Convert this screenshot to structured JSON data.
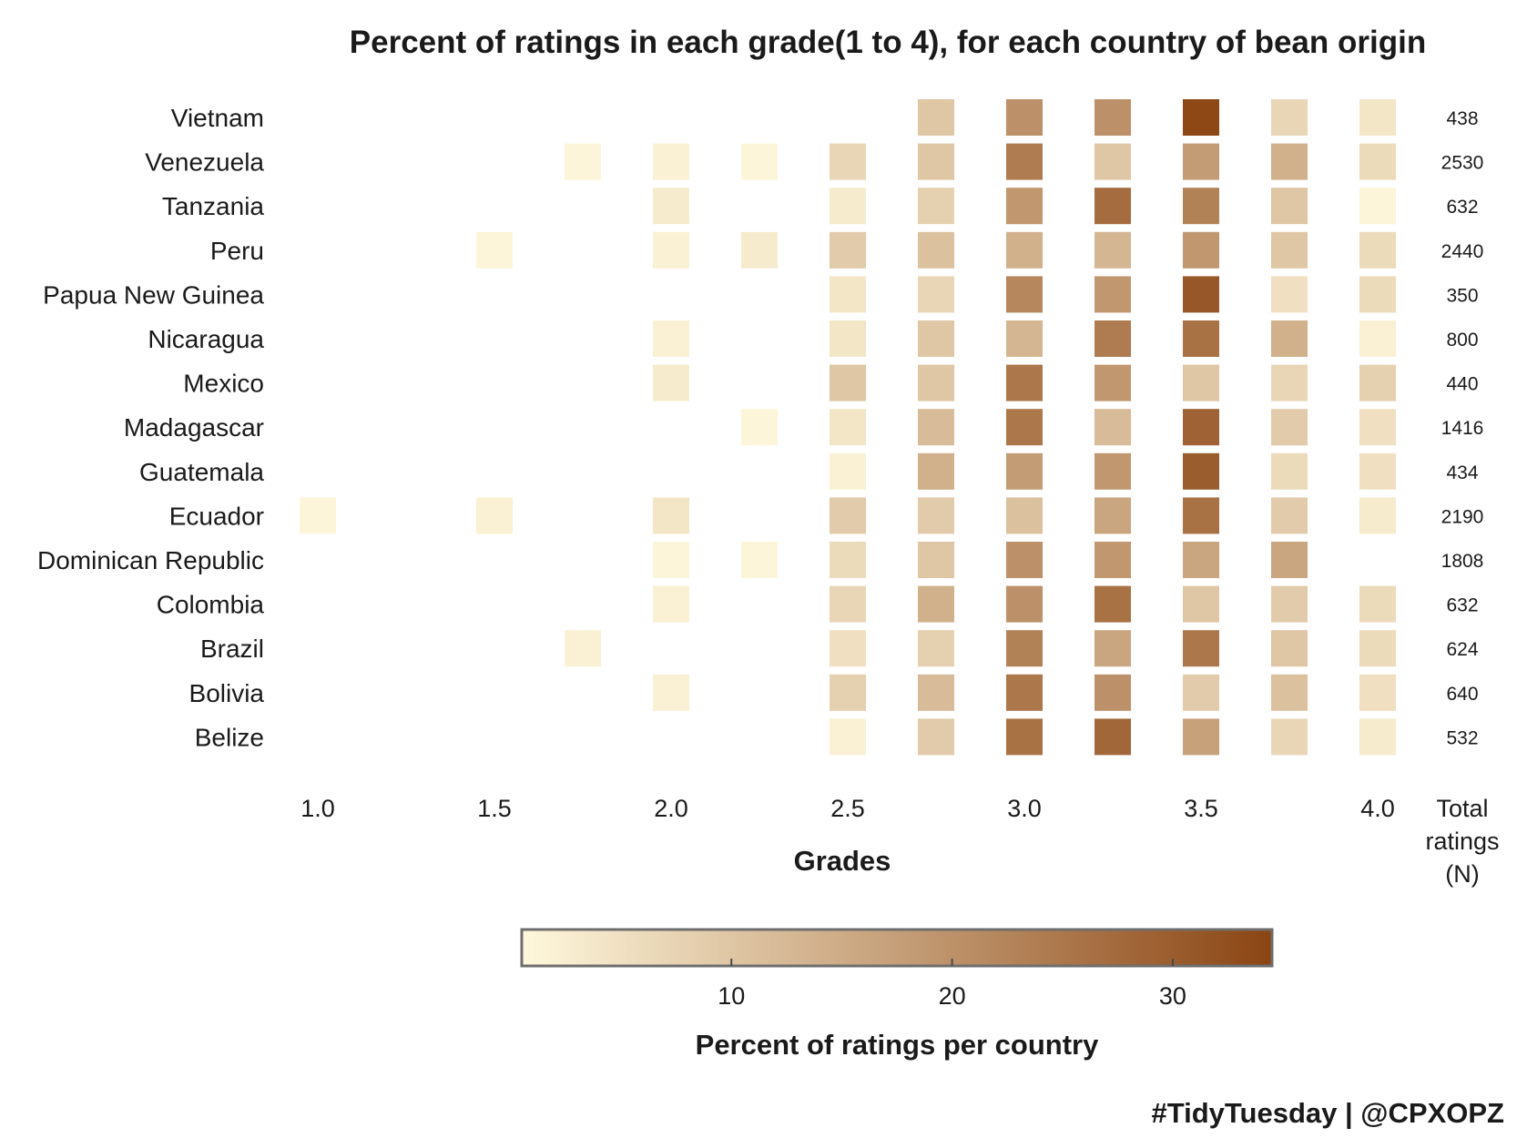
{
  "chart_data": {
    "type": "heatmap",
    "title": "Percent of ratings in each grade(1 to 4), for each country of bean origin",
    "xlabel": "Grades",
    "total_label": "Total\nratings\n(N)",
    "x_tick_labels": [
      "1.0",
      "1.5",
      "2.0",
      "2.5",
      "3.0",
      "3.5",
      "4.0"
    ],
    "grades": [
      1.0,
      1.25,
      1.5,
      1.75,
      2.0,
      2.25,
      2.5,
      2.75,
      3.0,
      3.25,
      3.5,
      3.75,
      4.0
    ],
    "countries": [
      "Vietnam",
      "Venezuela",
      "Tanzania",
      "Peru",
      "Papua New Guinea",
      "Nicaragua",
      "Mexico",
      "Madagascar",
      "Guatemala",
      "Ecuador",
      "Dominican Republic",
      "Colombia",
      "Brazil",
      "Bolivia",
      "Belize"
    ],
    "totals": [
      438,
      2530,
      632,
      2440,
      350,
      800,
      440,
      1416,
      434,
      2190,
      1808,
      632,
      624,
      640,
      532
    ],
    "values": [
      [
        null,
        null,
        null,
        null,
        null,
        null,
        null,
        10,
        20,
        20,
        34,
        7,
        4
      ],
      [
        null,
        null,
        null,
        1,
        2,
        1,
        7,
        10,
        24,
        10,
        18,
        14,
        6
      ],
      [
        null,
        null,
        null,
        null,
        3,
        null,
        3,
        8,
        19,
        27,
        23,
        10,
        1
      ],
      [
        null,
        null,
        1,
        null,
        2,
        3,
        9,
        11,
        14,
        13,
        19,
        10,
        6
      ],
      [
        null,
        null,
        null,
        null,
        null,
        null,
        4,
        7,
        22,
        19,
        31,
        5,
        6
      ],
      [
        null,
        null,
        null,
        null,
        2,
        null,
        4,
        10,
        13,
        24,
        26,
        14,
        2
      ],
      [
        null,
        null,
        null,
        null,
        3,
        null,
        10,
        10,
        25,
        19,
        10,
        7,
        8
      ],
      [
        null,
        null,
        null,
        null,
        null,
        1,
        4,
        12,
        25,
        12,
        29,
        9,
        5
      ],
      [
        null,
        null,
        null,
        null,
        null,
        null,
        2,
        14,
        18,
        19,
        30,
        6,
        5
      ],
      [
        1,
        null,
        2,
        null,
        4,
        null,
        9,
        9,
        11,
        16,
        26,
        9,
        3
      ],
      [
        null,
        null,
        null,
        null,
        1,
        1,
        6,
        10,
        20,
        19,
        16,
        16,
        null
      ],
      [
        null,
        null,
        null,
        null,
        2,
        null,
        7,
        14,
        20,
        26,
        10,
        9,
        6
      ],
      [
        null,
        null,
        null,
        2,
        null,
        null,
        5,
        8,
        23,
        16,
        25,
        10,
        6
      ],
      [
        null,
        null,
        null,
        null,
        2,
        null,
        8,
        12,
        25,
        20,
        9,
        11,
        5
      ],
      [
        null,
        null,
        null,
        null,
        null,
        null,
        2,
        9,
        26,
        28,
        17,
        7,
        3
      ]
    ],
    "colorbar": {
      "label": "Percent of ratings per country",
      "min": 0.5,
      "max": 34.5,
      "ticks": [
        10,
        20,
        30
      ],
      "low_color": "#fff8dc",
      "high_color": "#8b4513"
    },
    "caption": "#TidyTuesday | @CPXOPZ"
  }
}
